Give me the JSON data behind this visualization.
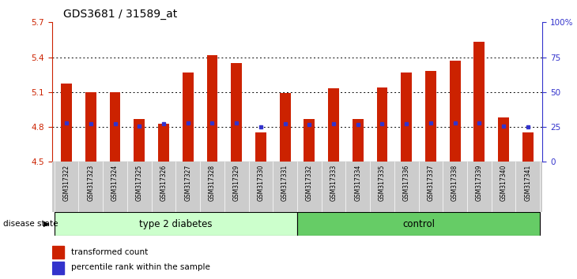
{
  "title": "GDS3681 / 31589_at",
  "samples": [
    "GSM317322",
    "GSM317323",
    "GSM317324",
    "GSM317325",
    "GSM317326",
    "GSM317327",
    "GSM317328",
    "GSM317329",
    "GSM317330",
    "GSM317331",
    "GSM317332",
    "GSM317333",
    "GSM317334",
    "GSM317335",
    "GSM317336",
    "GSM317337",
    "GSM317338",
    "GSM317339",
    "GSM317340",
    "GSM317341"
  ],
  "bar_values": [
    5.17,
    5.1,
    5.1,
    4.87,
    4.83,
    5.27,
    5.42,
    5.35,
    4.75,
    5.09,
    4.87,
    5.13,
    4.87,
    5.14,
    5.27,
    5.28,
    5.37,
    5.53,
    4.88,
    4.75
  ],
  "percentile_values": [
    4.835,
    4.825,
    4.825,
    4.805,
    4.825,
    4.835,
    4.835,
    4.835,
    4.8,
    4.825,
    4.82,
    4.825,
    4.82,
    4.825,
    4.825,
    4.835,
    4.835,
    4.835,
    4.805,
    4.8
  ],
  "ylim_left": [
    4.5,
    5.7
  ],
  "ylim_right": [
    0,
    100
  ],
  "yticks_left": [
    4.5,
    4.8,
    5.1,
    5.4,
    5.7
  ],
  "yticks_right": [
    0,
    25,
    50,
    75,
    100
  ],
  "ytick_labels_left": [
    "4.5",
    "4.8",
    "5.1",
    "5.4",
    "5.7"
  ],
  "ytick_labels_right": [
    "0",
    "25",
    "50",
    "75",
    "100%"
  ],
  "bar_color": "#cc2200",
  "marker_color": "#3333cc",
  "group1_label": "type 2 diabetes",
  "group2_label": "control",
  "group1_count": 10,
  "group2_count": 10,
  "disease_state_label": "disease state",
  "legend_bar_label": "transformed count",
  "legend_marker_label": "percentile rank within the sample",
  "bg_label": "#cccccc",
  "group1_color": "#ccffcc",
  "group2_color": "#66cc66",
  "grid_dotted_color": "#333333"
}
